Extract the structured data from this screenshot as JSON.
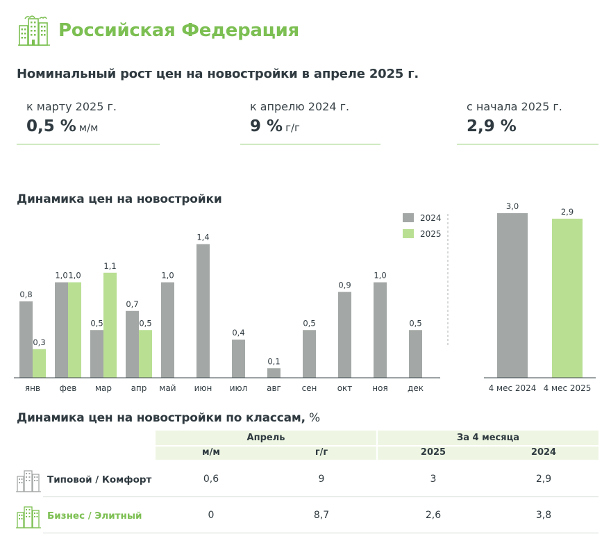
{
  "header": {
    "title": "Российская Федерация"
  },
  "subtitle": "Номинальный рост цен на новостройки в апреле 2025 г.",
  "kpis": [
    {
      "label": "к марту 2025 г.",
      "value": "0,5 %",
      "unit": "м/м"
    },
    {
      "label": "к апрелю 2024 г.",
      "value": "9 %",
      "unit": "г/г"
    },
    {
      "label": "с начала 2025 г.",
      "value": "2,9 %",
      "unit": ""
    }
  ],
  "colors": {
    "gray": "#a3a8a6",
    "green": "#b9df93",
    "accent": "#7cbf52",
    "text": "#2f3a40"
  },
  "chart_data": [
    {
      "type": "bar",
      "title": "Динамика цен на новостройки",
      "categories": [
        "янв",
        "фев",
        "мар",
        "апр",
        "май",
        "июн",
        "июл",
        "авг",
        "сен",
        "окт",
        "ноя",
        "дек"
      ],
      "series": [
        {
          "name": "2024",
          "color": "#a3a8a6",
          "values": [
            0.8,
            1.0,
            0.5,
            0.7,
            1.0,
            1.4,
            0.4,
            0.1,
            0.5,
            0.9,
            1.0,
            0.5
          ],
          "labels": [
            "0,8",
            "1,0",
            "0,5",
            "0,7",
            "1,0",
            "1,4",
            "0,4",
            "0,1",
            "0,5",
            "0,9",
            "1,0",
            "0,5"
          ]
        },
        {
          "name": "2025",
          "color": "#b9df93",
          "values": [
            0.3,
            1.0,
            1.1,
            0.5,
            null,
            null,
            null,
            null,
            null,
            null,
            null,
            null
          ],
          "labels": [
            "0,3",
            "1,0",
            "1,1",
            "0,5",
            "",
            "",
            "",
            "",
            "",
            "",
            "",
            ""
          ]
        }
      ],
      "ylim": [
        0,
        1.5
      ],
      "legend": "top-right",
      "grid": false
    },
    {
      "type": "bar",
      "categories": [
        "4 мес 2024",
        "4 мес 2025"
      ],
      "values": [
        3.0,
        2.9
      ],
      "labels": [
        "3,0",
        "2,9"
      ],
      "colors": [
        "#a3a8a6",
        "#b9df93"
      ],
      "ylim": [
        0,
        3.2
      ],
      "grid": false
    }
  ],
  "classes_table": {
    "title": "Динамика цен на новостройки по классам,",
    "title_unit": " %",
    "group_headers": [
      "Апрель",
      "За 4 месяца"
    ],
    "column_headers": [
      "м/м",
      "г/г",
      "2025",
      "2024"
    ],
    "rows": [
      {
        "label": "Типовой / Комфорт",
        "icon": "building-gray-icon",
        "color": "#2f3a40",
        "values": [
          "0,6",
          "9",
          "3",
          "2,9"
        ]
      },
      {
        "label": "Бизнес  / Элитный",
        "icon": "building-green-icon",
        "color": "#7cbf52",
        "values": [
          "0",
          "8,7",
          "2,6",
          "3,8"
        ]
      }
    ]
  }
}
